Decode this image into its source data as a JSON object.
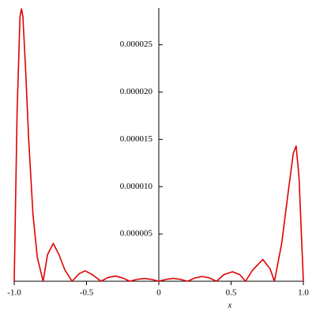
{
  "chart_data": {
    "type": "line",
    "x_label": "x",
    "x": [
      -1,
      -0.98,
      -0.96,
      -0.95,
      -0.94,
      -0.92,
      -0.9,
      -0.87,
      -0.84,
      -0.8,
      -0.77,
      -0.73,
      -0.69,
      -0.65,
      -0.6,
      -0.55,
      -0.51,
      -0.46,
      -0.4,
      -0.35,
      -0.3,
      -0.25,
      -0.2,
      -0.15,
      -0.1,
      -0.05,
      0,
      0.05,
      0.1,
      0.15,
      0.2,
      0.25,
      0.3,
      0.35,
      0.4,
      0.45,
      0.51,
      0.56,
      0.6,
      0.65,
      0.72,
      0.77,
      0.8,
      0.85,
      0.9,
      0.93,
      0.95,
      0.97,
      1
    ],
    "values": [
      0,
      1.8e-05,
      2.8e-05,
      2.88e-05,
      2.8e-05,
      2.2e-05,
      1.5e-05,
      7e-06,
      2.5e-06,
      0,
      2.8e-06,
      4e-06,
      2.8e-06,
      1.2e-06,
      0,
      8e-07,
      1.1e-06,
      7e-07,
      0,
      4e-07,
      5.5e-07,
      3.5e-07,
      0,
      2e-07,
      3e-07,
      2e-07,
      0,
      2e-07,
      3e-07,
      2e-07,
      0,
      3.5e-07,
      5e-07,
      3.5e-07,
      0,
      7e-07,
      1e-06,
      7e-07,
      0,
      1.2e-06,
      2.3e-06,
      1.3e-06,
      0,
      4e-06,
      1e-05,
      1.35e-05,
      1.43e-05,
      1.1e-05,
      0
    ],
    "color": "#e00000",
    "xlim": [
      -1,
      1
    ],
    "ylim": [
      0,
      2.89e-05
    ],
    "xticks": [
      {
        "value": -1,
        "label": "-1.0"
      },
      -0.5,
      0,
      0.5,
      {
        "value": 1,
        "label": "1.0"
      }
    ],
    "yticks": [
      5e-06,
      {
        "value": 1e-05,
        "label": "0.000010"
      },
      1.5e-05,
      {
        "value": 2e-05,
        "label": "0.000020"
      },
      2.5e-05
    ]
  }
}
